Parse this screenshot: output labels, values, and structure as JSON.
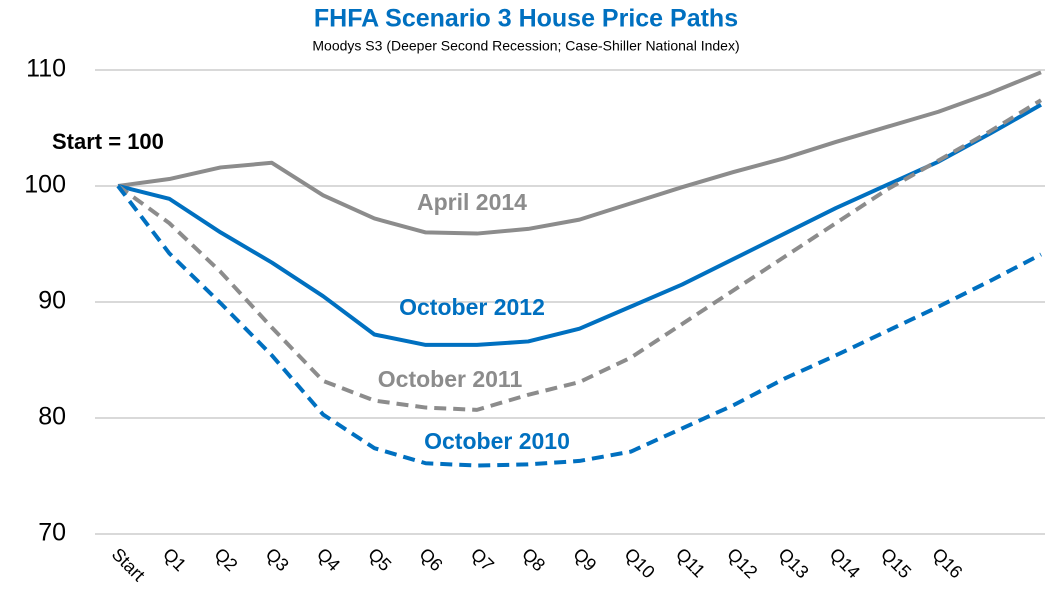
{
  "chart_data": {
    "type": "line",
    "title": "FHFA Scenario 3 House Price Paths",
    "subtitle": "Moodys S3 (Deeper Second Recession; Case-Shiller National Index)",
    "annotation": "Start = 100",
    "categories": [
      "Start",
      "Q1",
      "Q2",
      "Q3",
      "Q4",
      "Q5",
      "Q6",
      "Q7",
      "Q8",
      "Q9",
      "Q10",
      "Q11",
      "Q12",
      "Q13",
      "Q14",
      "Q15",
      "Q16",
      null,
      null
    ],
    "series": [
      {
        "name": "April 2014",
        "color": "#8c8c8c",
        "dashed": false,
        "values": [
          100,
          100.6,
          101.6,
          102,
          99.2,
          97.2,
          96,
          95.9,
          96.3,
          97.1,
          98.5,
          99.9,
          101.2,
          102.4,
          103.8,
          105.1,
          106.4,
          108,
          109.8
        ]
      },
      {
        "name": "October 2012",
        "color": "#0070c0",
        "dashed": false,
        "values": [
          100,
          98.9,
          96,
          93.4,
          90.5,
          87.2,
          86.3,
          86.3,
          86.6,
          87.7,
          89.6,
          91.5,
          93.7,
          95.9,
          98.1,
          100.1,
          102.1,
          104.5,
          107
        ]
      },
      {
        "name": "October 2011",
        "color": "#8c8c8c",
        "dashed": true,
        "values": [
          100,
          96.8,
          92.6,
          87.8,
          83.2,
          81.5,
          80.9,
          80.7,
          82,
          83.1,
          85.2,
          88.1,
          91,
          93.9,
          96.8,
          99.7,
          102.2,
          104.7,
          107.4
        ]
      },
      {
        "name": "October 2010",
        "color": "#0070c0",
        "dashed": true,
        "values": [
          100,
          94.2,
          89.9,
          85.4,
          80.3,
          77.4,
          76.1,
          75.9,
          76,
          76.3,
          77.1,
          79.1,
          81.1,
          83.4,
          85.4,
          87.5,
          89.6,
          91.8,
          94.1
        ]
      }
    ],
    "ylim": [
      70,
      110
    ],
    "yticks": [
      70,
      80,
      90,
      100,
      110
    ],
    "grid": true
  }
}
